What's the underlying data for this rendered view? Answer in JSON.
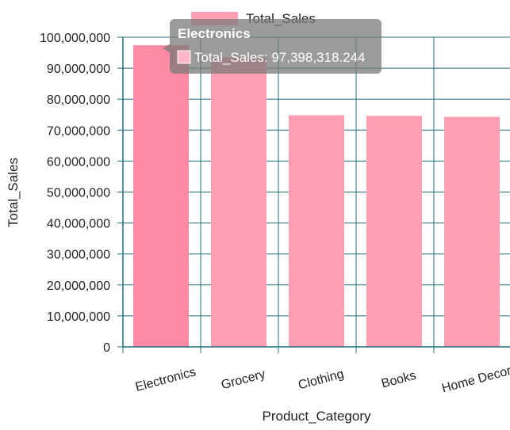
{
  "chart_data": {
    "type": "bar",
    "categories": [
      "Electronics",
      "Grocery",
      "Clothing",
      "Books",
      "Home Decor"
    ],
    "series": [
      {
        "name": "Total_Sales",
        "values": [
          97398318.244,
          93500000,
          74800000,
          74600000,
          74300000
        ]
      }
    ],
    "xlabel": "Product_Category",
    "ylabel": "Total_Sales",
    "ylim": [
      0,
      100000000
    ],
    "yticks": [
      "0",
      "10,000,000",
      "20,000,000",
      "30,000,000",
      "40,000,000",
      "50,000,000",
      "60,000,000",
      "70,000,000",
      "80,000,000",
      "90,000,000",
      "100,000,000"
    ],
    "grid": true,
    "legend": {
      "position": "top",
      "label": "Total_Sales"
    },
    "colors": {
      "bar": "#ff9fb4",
      "bar_hover": "#ff8aa4",
      "grid": "#1f6f7a",
      "axis": "#1f6f7a"
    },
    "tooltip": {
      "title": "Electronics",
      "text": "Total_Sales: 97,398,318.244"
    }
  }
}
